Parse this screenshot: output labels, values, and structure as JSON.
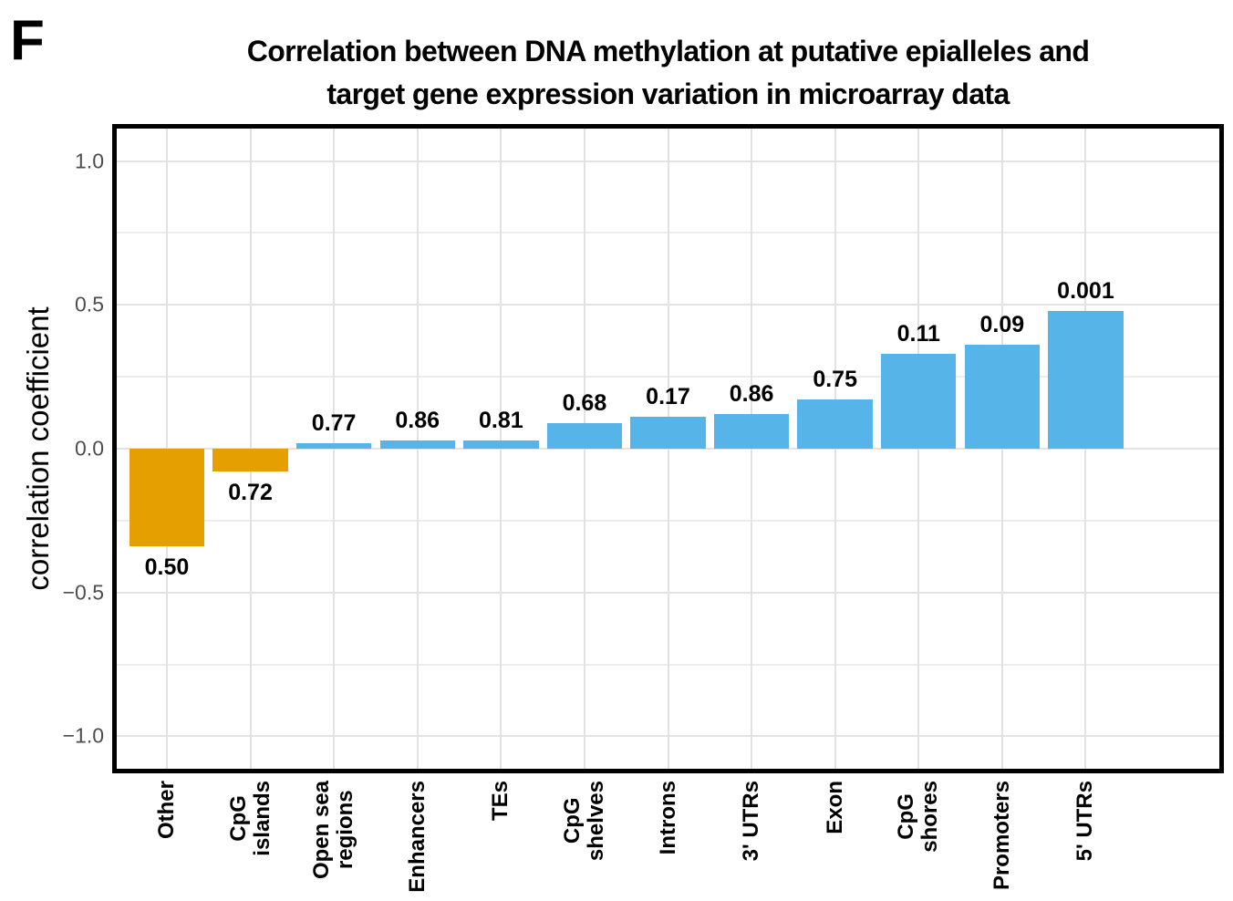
{
  "panel_label": "F",
  "chart_data": {
    "type": "bar",
    "title": "Correlation between DNA methylation at putative epialleles and target gene expression variation in microarray data",
    "title_lines": [
      "Correlation between DNA methylation at putative epialleles and",
      "target gene expression variation in microarray data"
    ],
    "ylabel": "correlation coefficient",
    "xlabel": "",
    "categories": [
      "Other",
      "CpG islands",
      "Open sea regions",
      "Enhancers",
      "TEs",
      "CpG shelves",
      "Introns",
      "3' UTRs",
      "Exon",
      "CpG shores",
      "Promoters",
      "5' UTRs"
    ],
    "category_tick_lines": [
      [
        "Other"
      ],
      [
        "CpG",
        "islands"
      ],
      [
        "Open sea",
        "regions"
      ],
      [
        "Enhancers"
      ],
      [
        "TEs"
      ],
      [
        "CpG",
        "shelves"
      ],
      [
        "Introns"
      ],
      [
        "3' UTRs"
      ],
      [
        "Exon"
      ],
      [
        "CpG",
        "shores"
      ],
      [
        "Promoters"
      ],
      [
        "5' UTRs"
      ]
    ],
    "values": [
      -0.34,
      -0.08,
      0.02,
      0.03,
      0.03,
      0.09,
      0.11,
      0.12,
      0.17,
      0.33,
      0.36,
      0.48
    ],
    "bar_labels": [
      "0.50",
      "0.72",
      "0.77",
      "0.86",
      "0.81",
      "0.68",
      "0.17",
      "0.86",
      "0.75",
      "0.11",
      "0.09",
      "0.001"
    ],
    "bar_colors": [
      "#E69F00",
      "#E69F00",
      "#56B4E9",
      "#56B4E9",
      "#56B4E9",
      "#56B4E9",
      "#56B4E9",
      "#56B4E9",
      "#56B4E9",
      "#56B4E9",
      "#56B4E9",
      "#56B4E9"
    ],
    "colors": {
      "negative_bar": "#E69F00",
      "positive_bar": "#56B4E9",
      "grid_major": "#E2E2E2",
      "grid_minor": "#ECECEC",
      "axis_text": "#4D4D4D",
      "panel_border": "#000000"
    },
    "ylim": [
      -1.113,
      1.113
    ],
    "yticks": [
      1.0,
      0.5,
      0.0,
      -0.5,
      -1.0
    ],
    "ytick_labels": [
      "1.0",
      "0.5",
      "0.0",
      "−0.5",
      "−1.0"
    ],
    "minor_yticks": [
      0.75,
      0.25,
      -0.25,
      -0.75
    ],
    "grid": "on",
    "legend": "none"
  }
}
